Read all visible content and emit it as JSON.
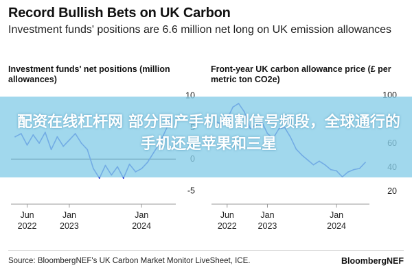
{
  "title": "Record Bullish Bets on UK Carbon",
  "subtitle": "Investment funds' positions are 6.6 million net long on UK emission allowances",
  "overlay_text": "配资在线杠杆网 部分国产手机阉割信号频段，全球通行的手机还是苹果和三星",
  "source": "Source: BloombergNEF's UK Carbon Market Monitor LiveSheet, ICE.",
  "brand": "BloombergNEF",
  "colors": {
    "line": "#2a36d6",
    "zero_line": "#111111",
    "banner": "#87cde8"
  },
  "chart_data": [
    {
      "type": "line",
      "title": "Investment funds' net positions (million allowances)",
      "x_ticks": [
        {
          "date": "2022-06",
          "label": [
            "Jun",
            "2022"
          ]
        },
        {
          "date": "2023-01",
          "label": [
            "Jan",
            "2023"
          ]
        },
        {
          "date": "2024-01",
          "label": [
            "Jan",
            "2024"
          ]
        }
      ],
      "y_ticks": [
        10,
        5,
        0,
        -5
      ],
      "ylim": [
        -6,
        11
      ],
      "reference_line": 0,
      "series": [
        {
          "x": [
            "2022-04",
            "2022-05",
            "2022-06",
            "2022-07",
            "2022-08",
            "2022-09",
            "2022-10",
            "2022-11",
            "2022-12",
            "2023-01",
            "2023-02",
            "2023-03",
            "2023-04",
            "2023-05",
            "2023-06",
            "2023-07",
            "2023-08",
            "2023-09",
            "2023-10",
            "2023-11",
            "2023-12",
            "2024-01",
            "2024-02",
            "2024-03",
            "2024-04",
            "2024-05",
            "2024-06"
          ],
          "values": [
            3.5,
            4.0,
            2.2,
            3.8,
            2.5,
            4.2,
            1.5,
            3.5,
            2.0,
            3.0,
            4.0,
            2.5,
            1.5,
            -1.5,
            -3.0,
            -1.0,
            -2.5,
            -1.2,
            -3.0,
            -0.8,
            -2.0,
            -1.5,
            -0.5,
            1.0,
            2.5,
            4.5,
            6.6
          ]
        }
      ]
    },
    {
      "type": "line",
      "title": "Front-year UK carbon allowance price (£ per metric ton CO2e)",
      "x_ticks": [
        {
          "date": "2022-06",
          "label": [
            "Jun",
            "2022"
          ]
        },
        {
          "date": "2023-01",
          "label": [
            "Jan",
            "2023"
          ]
        },
        {
          "date": "2024-01",
          "label": [
            "Jan",
            "2024"
          ]
        }
      ],
      "y_ticks": [
        100,
        80,
        60,
        40,
        20
      ],
      "ylim": [
        15,
        105
      ],
      "series": [
        {
          "x": [
            "2022-04",
            "2022-05",
            "2022-06",
            "2022-07",
            "2022-08",
            "2022-09",
            "2022-10",
            "2022-11",
            "2022-12",
            "2023-01",
            "2023-02",
            "2023-03",
            "2023-04",
            "2023-05",
            "2023-06",
            "2023-07",
            "2023-08",
            "2023-09",
            "2023-10",
            "2023-11",
            "2023-12",
            "2024-01",
            "2024-02",
            "2024-03",
            "2024-04",
            "2024-05",
            "2024-06"
          ],
          "values": [
            78,
            76,
            80,
            90,
            93,
            86,
            72,
            75,
            78,
            68,
            64,
            72,
            73,
            65,
            55,
            50,
            46,
            42,
            45,
            42,
            38,
            37,
            32,
            36,
            38,
            39,
            44
          ]
        }
      ]
    }
  ]
}
